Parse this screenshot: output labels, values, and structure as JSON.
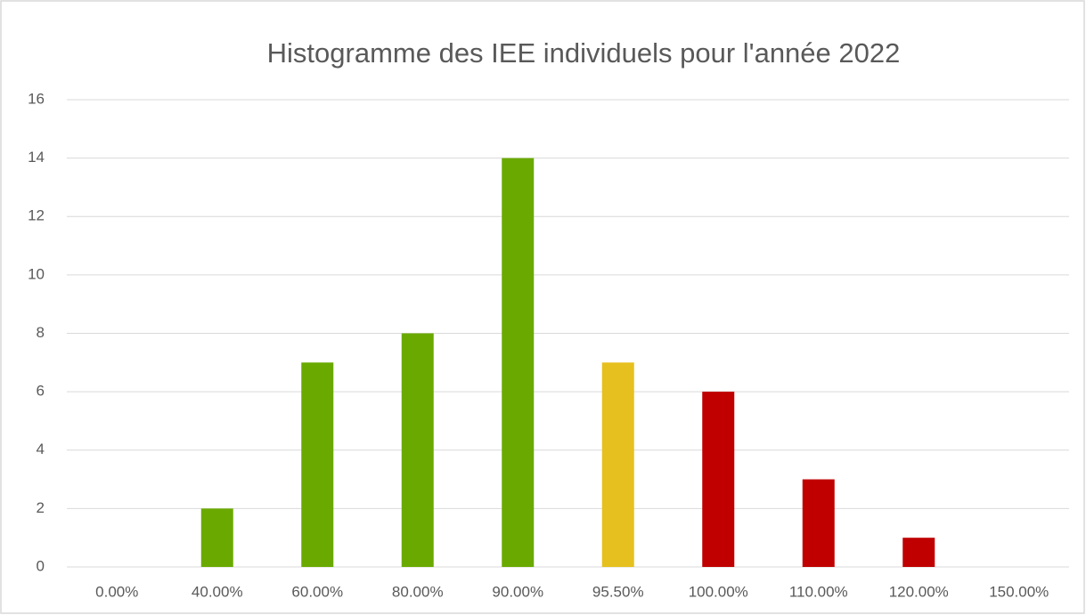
{
  "chart_data": {
    "type": "bar",
    "title": "Histogramme des IEE individuels pour l'année 2022",
    "categories": [
      "0.00%",
      "40.00%",
      "60.00%",
      "80.00%",
      "90.00%",
      "95.50%",
      "100.00%",
      "110.00%",
      "120.00%",
      "150.00%"
    ],
    "values": [
      0,
      2,
      7,
      8,
      14,
      7,
      6,
      3,
      1,
      0
    ],
    "colors": [
      "#6aaa00",
      "#6aaa00",
      "#6aaa00",
      "#6aaa00",
      "#6aaa00",
      "#e6c01e",
      "#c00000",
      "#c00000",
      "#c00000",
      "#c00000"
    ],
    "ylim": [
      0,
      16
    ],
    "yticks": [
      0,
      2,
      4,
      6,
      8,
      10,
      12,
      14,
      16
    ],
    "grid": true
  }
}
